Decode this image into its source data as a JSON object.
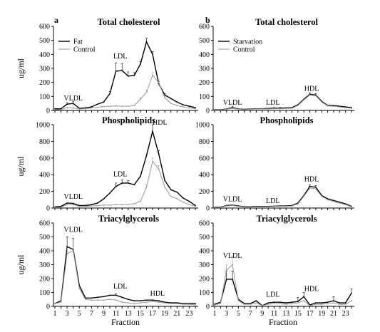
{
  "figure": {
    "panel_labels": [
      "a",
      "b"
    ],
    "ylabel": "ug/ml",
    "xlabel": "Fraction"
  },
  "chart_data": [
    {
      "type": "line",
      "panel": "a",
      "title": "Total cholesterol",
      "x": [
        1,
        2,
        3,
        4,
        5,
        6,
        7,
        8,
        9,
        10,
        11,
        12,
        13,
        14,
        15,
        16,
        17,
        18,
        19,
        20,
        21,
        22,
        23,
        24
      ],
      "xticks": [
        "1",
        "3",
        "5",
        "7",
        "9",
        "11",
        "13",
        "15",
        "17",
        "19",
        "21",
        "23"
      ],
      "ylim": [
        0,
        600
      ],
      "yticks": [
        "0",
        "100",
        "200",
        "300",
        "400",
        "500",
        "600"
      ],
      "legend": "top-left",
      "annotations": [
        {
          "text": "VLDL",
          "x": 4,
          "y": 70
        },
        {
          "text": "LDL",
          "x": 11.7,
          "y": 370
        }
      ],
      "series": [
        {
          "name": "Fat",
          "color": "#000000",
          "values": [
            12,
            12,
            45,
            50,
            15,
            18,
            25,
            45,
            60,
            120,
            280,
            285,
            245,
            250,
            330,
            490,
            400,
            190,
            110,
            85,
            60,
            40,
            30,
            20
          ],
          "errors": [
            0,
            0,
            10,
            15,
            0,
            0,
            0,
            0,
            0,
            15,
            60,
            50,
            30,
            20,
            20,
            25,
            20,
            15,
            10,
            0,
            0,
            0,
            0,
            0
          ]
        },
        {
          "name": "Control",
          "color": "#9a9a9a",
          "values": [
            5,
            5,
            20,
            18,
            10,
            12,
            18,
            22,
            28,
            30,
            32,
            30,
            30,
            35,
            80,
            130,
            250,
            200,
            90,
            50,
            35,
            25,
            18,
            12
          ],
          "errors": [
            0,
            0,
            0,
            0,
            0,
            0,
            0,
            0,
            0,
            0,
            0,
            0,
            0,
            0,
            10,
            15,
            20,
            20,
            10,
            0,
            0,
            0,
            0,
            0
          ]
        }
      ]
    },
    {
      "type": "line",
      "panel": "b",
      "title": "Total cholesterol",
      "x": [
        1,
        2,
        3,
        4,
        5,
        6,
        7,
        8,
        9,
        10,
        11,
        12,
        13,
        14,
        15,
        16,
        17,
        18,
        19,
        20,
        21,
        22,
        23,
        24
      ],
      "xticks": [
        "1",
        "3",
        "5",
        "7",
        "9",
        "11",
        "13",
        "15",
        "17",
        "19",
        "21",
        "23"
      ],
      "ylim": [
        0,
        600
      ],
      "yticks": [
        "0",
        "100",
        "200",
        "300",
        "400",
        "500",
        "600"
      ],
      "legend": "top-left",
      "annotations": [
        {
          "text": "VLDL",
          "x": 4,
          "y": 40
        },
        {
          "text": "LDL",
          "x": 10.8,
          "y": 40
        },
        {
          "text": "HDL",
          "x": 17.3,
          "y": 140
        }
      ],
      "series": [
        {
          "name": "Starvation",
          "color": "#000000",
          "values": [
            5,
            5,
            10,
            20,
            10,
            8,
            10,
            12,
            12,
            14,
            15,
            16,
            18,
            20,
            40,
            80,
            115,
            110,
            65,
            35,
            35,
            30,
            25,
            20
          ],
          "errors": [
            0,
            0,
            0,
            10,
            0,
            0,
            0,
            0,
            0,
            0,
            5,
            5,
            0,
            0,
            0,
            0,
            10,
            10,
            0,
            0,
            0,
            0,
            0,
            0
          ]
        },
        {
          "name": "Control",
          "color": "#9a9a9a",
          "values": [
            3,
            4,
            8,
            15,
            8,
            6,
            8,
            10,
            10,
            10,
            12,
            12,
            14,
            16,
            35,
            75,
            110,
            105,
            60,
            32,
            30,
            25,
            20,
            15
          ],
          "errors": [
            0,
            0,
            0,
            0,
            0,
            0,
            0,
            0,
            0,
            0,
            0,
            0,
            0,
            0,
            0,
            0,
            0,
            0,
            0,
            0,
            0,
            0,
            0,
            0
          ]
        }
      ]
    },
    {
      "type": "line",
      "panel": "a",
      "title": "Phospholipids",
      "x": [
        1,
        2,
        3,
        4,
        5,
        6,
        7,
        8,
        9,
        10,
        11,
        12,
        13,
        14,
        15,
        16,
        17,
        18,
        19,
        20,
        21,
        22,
        23,
        24
      ],
      "xticks": [
        "1",
        "3",
        "5",
        "7",
        "9",
        "11",
        "13",
        "15",
        "17",
        "19",
        "21",
        "23"
      ],
      "ylim": [
        0,
        1000
      ],
      "yticks": [
        "0",
        "200",
        "400",
        "600",
        "800",
        "1000"
      ],
      "annotations": [
        {
          "text": "VLDL",
          "x": 4,
          "y": 110
        },
        {
          "text": "LDL",
          "x": 11.7,
          "y": 380
        },
        {
          "text": "HDL",
          "x": 18.2,
          "y": 1000
        }
      ],
      "series": [
        {
          "name": "Fat",
          "color": "#000000",
          "values": [
            15,
            20,
            60,
            55,
            30,
            30,
            40,
            60,
            110,
            180,
            260,
            300,
            300,
            280,
            380,
            630,
            920,
            650,
            330,
            220,
            190,
            120,
            80,
            30
          ],
          "errors": [
            0,
            0,
            0,
            0,
            0,
            0,
            0,
            0,
            0,
            0,
            40,
            40,
            30,
            0,
            0,
            0,
            80,
            40,
            0,
            0,
            0,
            0,
            0,
            0
          ]
        },
        {
          "name": "Control",
          "color": "#9a9a9a",
          "values": [
            10,
            10,
            40,
            40,
            20,
            20,
            25,
            30,
            35,
            35,
            40,
            40,
            45,
            50,
            80,
            250,
            560,
            470,
            250,
            140,
            110,
            70,
            40,
            20
          ],
          "errors": [
            0,
            0,
            0,
            0,
            0,
            0,
            0,
            0,
            0,
            0,
            0,
            0,
            0,
            0,
            0,
            30,
            40,
            40,
            0,
            0,
            0,
            0,
            0,
            0
          ]
        }
      ]
    },
    {
      "type": "line",
      "panel": "b",
      "title": "Phospholipids",
      "x": [
        1,
        2,
        3,
        4,
        5,
        6,
        7,
        8,
        9,
        10,
        11,
        12,
        13,
        14,
        15,
        16,
        17,
        18,
        19,
        20,
        21,
        22,
        23,
        24
      ],
      "xticks": [
        "1",
        "3",
        "5",
        "7",
        "9",
        "11",
        "13",
        "15",
        "17",
        "19",
        "21",
        "23"
      ],
      "ylim": [
        0,
        1000
      ],
      "yticks": [
        "0",
        "200",
        "400",
        "600",
        "800",
        "1000"
      ],
      "annotations": [
        {
          "text": "VLDL",
          "x": 4,
          "y": 80
        },
        {
          "text": "LDL",
          "x": 10.8,
          "y": 60
        },
        {
          "text": "HDL",
          "x": 17.3,
          "y": 320
        }
      ],
      "series": [
        {
          "name": "Starvation",
          "color": "#000000",
          "values": [
            10,
            10,
            30,
            35,
            25,
            15,
            15,
            20,
            20,
            20,
            22,
            25,
            25,
            30,
            60,
            150,
            260,
            250,
            150,
            110,
            90,
            70,
            50,
            20
          ],
          "errors": [
            0,
            0,
            0,
            0,
            0,
            0,
            0,
            0,
            0,
            0,
            0,
            0,
            0,
            0,
            0,
            0,
            20,
            20,
            0,
            0,
            0,
            0,
            0,
            0
          ]
        },
        {
          "name": "Control",
          "color": "#9a9a9a",
          "values": [
            8,
            8,
            25,
            30,
            20,
            12,
            12,
            15,
            15,
            15,
            18,
            20,
            20,
            25,
            50,
            140,
            240,
            230,
            140,
            100,
            80,
            60,
            40,
            15
          ],
          "errors": [
            0,
            0,
            0,
            0,
            0,
            0,
            0,
            0,
            0,
            0,
            0,
            0,
            0,
            0,
            0,
            0,
            0,
            0,
            0,
            0,
            0,
            0,
            0,
            0
          ]
        }
      ]
    },
    {
      "type": "line",
      "panel": "a",
      "title": "Triacylglycerols",
      "x": [
        1,
        2,
        3,
        4,
        5,
        6,
        7,
        8,
        9,
        10,
        11,
        12,
        13,
        14,
        15,
        16,
        17,
        18,
        19,
        20,
        21,
        22,
        23,
        24
      ],
      "xticks": [
        "1",
        "3",
        "5",
        "7",
        "9",
        "11",
        "13",
        "15",
        "17",
        "19",
        "21",
        "23"
      ],
      "ylim": [
        0,
        600
      ],
      "yticks": [
        "0",
        "100",
        "200",
        "300",
        "400",
        "500",
        "600"
      ],
      "annotations": [
        {
          "text": "VLDL",
          "x": 4,
          "y": 535
        },
        {
          "text": "LDL",
          "x": 11.7,
          "y": 128
        },
        {
          "text": "HDL",
          "x": 17.8,
          "y": 78
        }
      ],
      "series": [
        {
          "name": "Fat",
          "color": "#000000",
          "values": [
            20,
            40,
            430,
            410,
            150,
            60,
            60,
            65,
            70,
            80,
            80,
            65,
            50,
            40,
            40,
            45,
            45,
            40,
            30,
            25,
            25,
            20,
            20,
            20
          ],
          "errors": [
            0,
            0,
            70,
            80,
            0,
            0,
            0,
            0,
            0,
            0,
            10,
            0,
            0,
            0,
            0,
            0,
            0,
            0,
            0,
            0,
            0,
            0,
            0,
            0
          ]
        },
        {
          "name": "Control",
          "color": "#9a9a9a",
          "values": [
            20,
            30,
            380,
            400,
            130,
            50,
            45,
            45,
            45,
            50,
            45,
            30,
            25,
            20,
            25,
            30,
            35,
            30,
            25,
            20,
            20,
            15,
            15,
            10
          ],
          "errors": [
            0,
            0,
            40,
            30,
            0,
            0,
            0,
            0,
            0,
            0,
            0,
            0,
            0,
            0,
            0,
            0,
            0,
            0,
            0,
            0,
            0,
            0,
            0,
            0
          ]
        }
      ]
    },
    {
      "type": "line",
      "panel": "b",
      "title": "Triacylglycerols",
      "x": [
        1,
        2,
        3,
        4,
        5,
        6,
        7,
        8,
        9,
        10,
        11,
        12,
        13,
        14,
        15,
        16,
        17,
        18,
        19,
        20,
        21,
        22,
        23,
        24
      ],
      "xticks": [
        "1",
        "3",
        "5",
        "7",
        "9",
        "11",
        "13",
        "15",
        "17",
        "19",
        "21",
        "23"
      ],
      "ylim": [
        0,
        600
      ],
      "yticks": [
        "0",
        "100",
        "200",
        "300",
        "400",
        "500",
        "600"
      ],
      "annotations": [
        {
          "text": "VLDL",
          "x": 4,
          "y": 350
        },
        {
          "text": "LDL",
          "x": 10.8,
          "y": 70
        },
        {
          "text": "HDL",
          "x": 17.3,
          "y": 110
        }
      ],
      "series": [
        {
          "name": "Starvation",
          "color": "#000000",
          "values": [
            15,
            30,
            195,
            195,
            50,
            20,
            20,
            40,
            5,
            25,
            30,
            30,
            25,
            30,
            35,
            70,
            10,
            25,
            25,
            30,
            40,
            25,
            25,
            95
          ],
          "errors": [
            0,
            0,
            60,
            60,
            0,
            0,
            0,
            0,
            0,
            0,
            0,
            0,
            0,
            0,
            30,
            30,
            0,
            0,
            0,
            0,
            30,
            0,
            0,
            30
          ]
        },
        {
          "name": "Control",
          "color": "#9a9a9a",
          "values": [
            10,
            20,
            260,
            300,
            40,
            15,
            15,
            25,
            5,
            15,
            20,
            20,
            15,
            20,
            25,
            40,
            5,
            15,
            15,
            20,
            25,
            15,
            15,
            40
          ],
          "errors": [
            0,
            0,
            40,
            60,
            0,
            0,
            0,
            0,
            0,
            0,
            0,
            0,
            0,
            0,
            0,
            0,
            0,
            0,
            0,
            0,
            0,
            0,
            0,
            0
          ]
        }
      ]
    }
  ]
}
